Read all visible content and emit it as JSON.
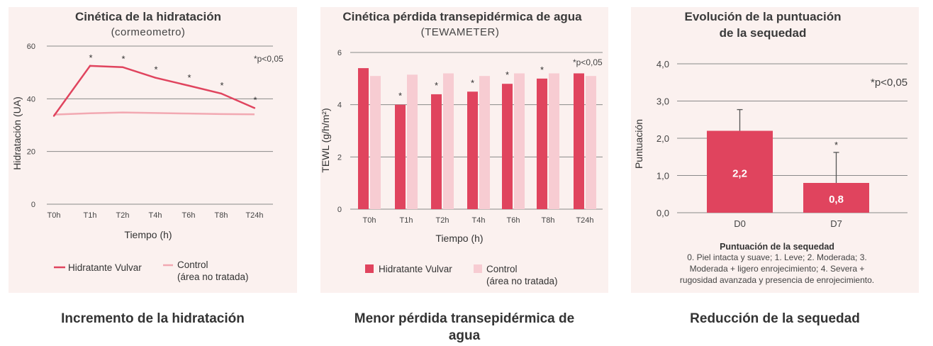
{
  "colors": {
    "treated": "#e0445e",
    "control": "#f7ccd2",
    "control_line": "#f2a9b2",
    "panel_bg": "#fbf1ef"
  },
  "panel1": {
    "title": "Cinética de la hidratación",
    "subtitle": "(cormeometro)",
    "note": "*p<0,05",
    "legend_treated": "Hidratante Vulvar",
    "legend_control_1": "Control",
    "legend_control_2": "(área no tratada)"
  },
  "panel2": {
    "title": "Cinética pérdida transepidérmica de agua",
    "subtitle": "(TEWAMETER)",
    "note": "*p<0,05",
    "legend_treated": "Hidratante Vulvar",
    "legend_control_1": "Control",
    "legend_control_2": "(área no tratada)"
  },
  "panel3": {
    "title_1": "Evolución de la puntuación",
    "title_2": "de la sequedad",
    "note": "*p<0,05",
    "scale_title": "Puntuación de la sequedad",
    "scale_lines": [
      "0. Piel intacta y suave; 1. Leve; 2. Moderada; 3.",
      "Moderada + ligero enrojecimiento; 4. Severa +",
      "rugosidad avanzada y presencia de enrojecimiento."
    ]
  },
  "captions": {
    "c1": "Incremento de la hidratación",
    "c2_1": "Menor pérdida transepidérmica de",
    "c2_2": "agua",
    "c3": "Reducción de la sequedad"
  },
  "chart_data": [
    {
      "type": "line",
      "title": "Cinética de la hidratación",
      "xlabel": "Tiempo (h)",
      "ylabel": "Hidratación (UA)",
      "categories": [
        "T0h",
        "T1h",
        "T2h",
        "T4h",
        "T6h",
        "T8h",
        "T24h"
      ],
      "ylim": [
        0,
        60
      ],
      "yticks": [
        "0",
        "20",
        "40",
        "60"
      ],
      "series": [
        {
          "name": "Hidratante Vulvar",
          "values": [
            33.5,
            52.5,
            52,
            48,
            45,
            42,
            36.5
          ],
          "significant": [
            false,
            true,
            true,
            true,
            true,
            true,
            true
          ]
        },
        {
          "name": "Control",
          "values": [
            34,
            34.5,
            34.8,
            34.6,
            34.4,
            34.2,
            34.1
          ]
        }
      ]
    },
    {
      "type": "bar",
      "title": "Cinética pérdida transepidérmica de agua",
      "xlabel": "Tiempo (h)",
      "ylabel": "TEWL (g/h/m²)",
      "categories": [
        "T0h",
        "T1h",
        "T2h",
        "T4h",
        "T6h",
        "T8h",
        "T24h"
      ],
      "ylim": [
        0,
        6
      ],
      "yticks": [
        "0",
        "2",
        "4",
        "6"
      ],
      "series": [
        {
          "name": "Hidratante Vulvar",
          "values": [
            5.4,
            4.0,
            4.4,
            4.5,
            4.8,
            5.0,
            5.2
          ],
          "significant": [
            false,
            true,
            true,
            true,
            true,
            true,
            false
          ]
        },
        {
          "name": "Control",
          "values": [
            5.1,
            5.15,
            5.2,
            5.1,
            5.2,
            5.2,
            5.1
          ]
        }
      ]
    },
    {
      "type": "bar",
      "title": "Evolución de la puntuación de la sequedad",
      "xlabel": "",
      "ylabel": "Puntuación",
      "categories": [
        "D0",
        "D7"
      ],
      "values": [
        2.2,
        0.8
      ],
      "value_labels": [
        "2,2",
        "0,8"
      ],
      "error_upper": [
        2.77,
        1.62
      ],
      "significant": [
        false,
        true
      ],
      "ylim": [
        0,
        4
      ],
      "yticks": [
        "0,0",
        "1,0",
        "2,0",
        "3,0",
        "4,0"
      ]
    }
  ]
}
